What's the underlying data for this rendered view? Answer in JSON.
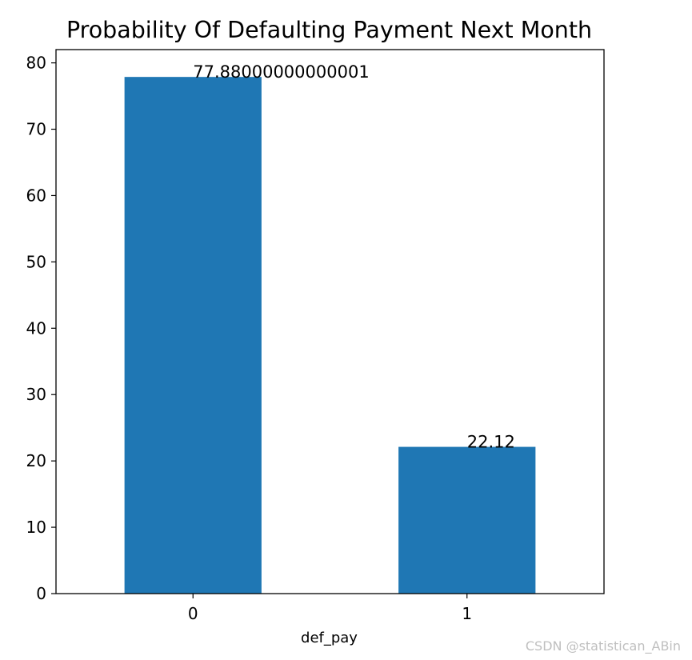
{
  "chart_data": {
    "type": "bar",
    "title": "Probability Of Defaulting Payment Next Month",
    "xlabel": "def_pay",
    "ylabel": "",
    "categories": [
      "0",
      "1"
    ],
    "values": [
      77.88,
      22.12
    ],
    "data_labels": [
      "77.88000000000001",
      "22.12"
    ],
    "ylim": [
      0,
      82
    ],
    "yticks": [
      0,
      10,
      20,
      30,
      40,
      50,
      60,
      70,
      80
    ],
    "bar_color": "#1f77b4",
    "grid": false,
    "legend": false
  },
  "watermark": "CSDN @statistican_ABin"
}
